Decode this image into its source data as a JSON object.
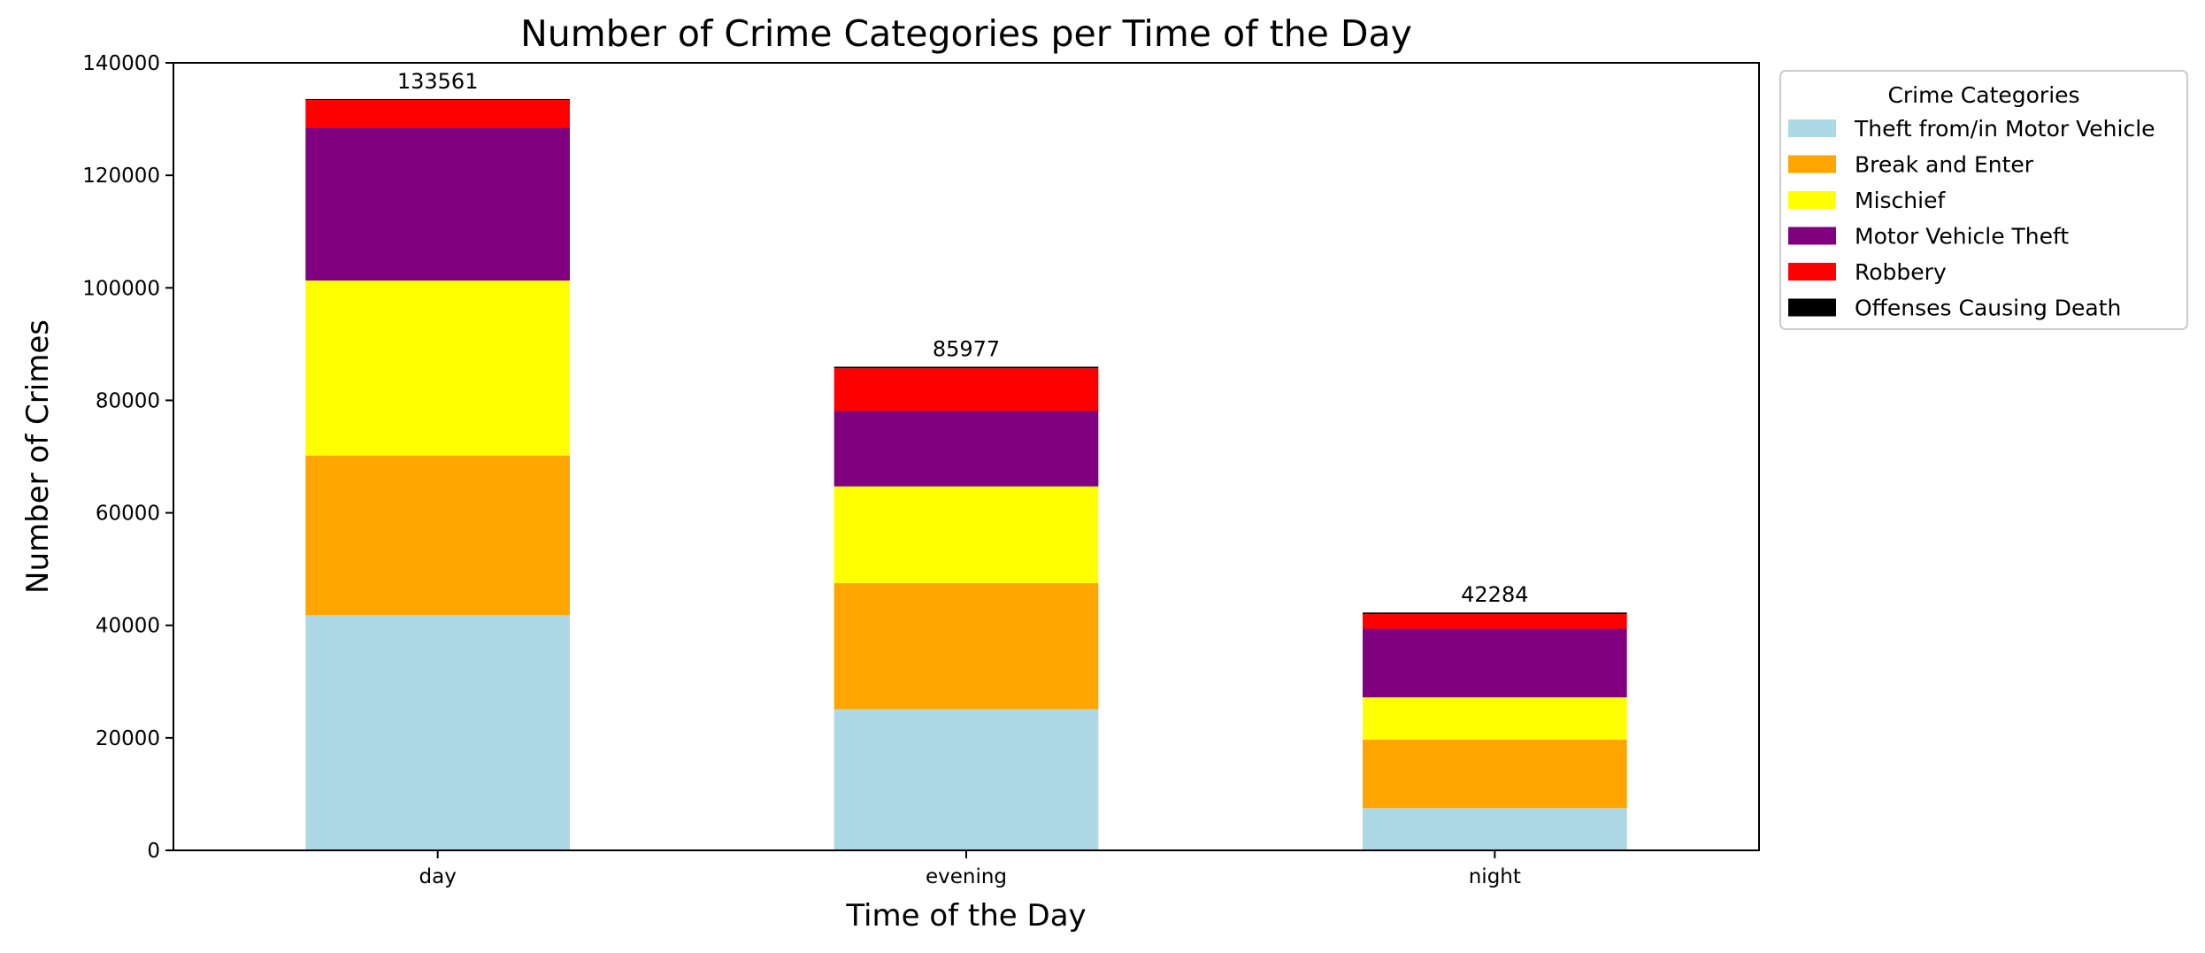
{
  "chart_data": {
    "type": "bar",
    "stacked": true,
    "title": "Number of Crime Categories per Time of the Day",
    "xlabel": "Time of the Day",
    "ylabel": "Number of Crimes",
    "categories": [
      "day",
      "evening",
      "night"
    ],
    "ylim": [
      0,
      140000
    ],
    "yticks": [
      0,
      20000,
      40000,
      60000,
      80000,
      100000,
      120000,
      140000
    ],
    "yticklabels": [
      "0",
      "20000",
      "40000",
      "60000",
      "80000",
      "100000",
      "120000",
      "140000"
    ],
    "totals": [
      133561,
      85977,
      42284
    ],
    "totals_text": [
      "133561",
      "85977",
      "42284"
    ],
    "legend": {
      "title": "Crime Categories",
      "position": "upper-left-outside-right"
    },
    "grid": false,
    "series": [
      {
        "name": "Theft from/in Motor Vehicle",
        "color": "#add8e6",
        "values": [
          41800,
          25100,
          7500
        ]
      },
      {
        "name": "Break and Enter",
        "color": "#ffa500",
        "values": [
          28400,
          22400,
          12200
        ]
      },
      {
        "name": "Mischief",
        "color": "#ffff00",
        "values": [
          31100,
          17200,
          7500
        ]
      },
      {
        "name": "Motor Vehicle Theft",
        "color": "#800080",
        "values": [
          27200,
          13400,
          12200
        ]
      },
      {
        "name": "Robbery",
        "color": "#ff0000",
        "values": [
          4900,
          7600,
          2600
        ]
      },
      {
        "name": "Offenses Causing Death",
        "color": "#000000",
        "values": [
          161,
          277,
          284
        ]
      }
    ]
  }
}
